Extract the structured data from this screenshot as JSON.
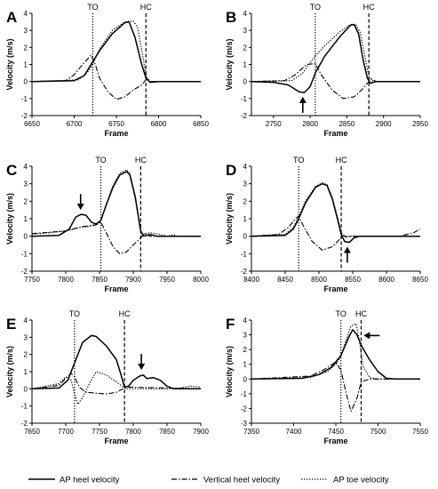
{
  "legend": {
    "solid": "AP heel velocity",
    "dashdot": "Vertical heel velocity",
    "dotted": "AP toe velocity"
  },
  "colors": {
    "ink": "#000000",
    "background": "#ffffff"
  },
  "chart_data": [
    {
      "type": "line",
      "panel": "A",
      "xlabel": "Frame",
      "ylabel": "Velocity (m/s)",
      "xlim": [
        6650,
        6850
      ],
      "ylim": [
        -2,
        4
      ],
      "xticks": [
        6650,
        6700,
        6750,
        6800,
        6850
      ],
      "yticks": [
        -2,
        -1,
        0,
        1,
        2,
        3,
        4
      ],
      "events": [
        {
          "label": "TO",
          "x": 6722,
          "style": "dotted"
        },
        {
          "label": "HC",
          "x": 6785,
          "style": "dashed"
        }
      ],
      "arrows": [],
      "series": [
        {
          "name": "AP heel velocity",
          "style": "solid",
          "x": [
            6650,
            6700,
            6712,
            6720,
            6730,
            6745,
            6760,
            6765,
            6772,
            6780,
            6785,
            6790,
            6800,
            6850
          ],
          "y": [
            0,
            0.05,
            0.35,
            1.0,
            1.8,
            2.8,
            3.45,
            3.5,
            2.6,
            1.0,
            0.2,
            -0.05,
            0,
            0
          ]
        },
        {
          "name": "Vertical heel velocity",
          "style": "dashdot",
          "x": [
            6650,
            6690,
            6700,
            6710,
            6720,
            6725,
            6730,
            6740,
            6750,
            6760,
            6770,
            6780,
            6785,
            6790,
            6800,
            6850
          ],
          "y": [
            0,
            0.05,
            0.4,
            1.0,
            1.55,
            1.0,
            0.2,
            -0.6,
            -1.05,
            -0.9,
            -0.5,
            -0.2,
            0.1,
            0,
            0,
            0
          ]
        },
        {
          "name": "AP toe velocity",
          "style": "dotted",
          "x": [
            6650,
            6705,
            6715,
            6722,
            6730,
            6745,
            6760,
            6770,
            6775,
            6782,
            6785,
            6790,
            6850
          ],
          "y": [
            0,
            0.1,
            0.5,
            1.0,
            1.9,
            3.0,
            3.5,
            3.55,
            3.2,
            1.3,
            0.3,
            0,
            0
          ]
        }
      ]
    },
    {
      "type": "line",
      "panel": "B",
      "xlabel": "Frame",
      "ylabel": "Velocity (m/s)",
      "xlim": [
        2720,
        2950
      ],
      "ylim": [
        -2,
        4
      ],
      "xticks": [
        2750,
        2800,
        2850,
        2900,
        2950
      ],
      "yticks": [
        -2,
        -1,
        0,
        1,
        2,
        3,
        4
      ],
      "events": [
        {
          "label": "TO",
          "x": 2807,
          "style": "dotted"
        },
        {
          "label": "HC",
          "x": 2880,
          "style": "dashed"
        }
      ],
      "arrows": [
        {
          "direction": "up",
          "x": 2790,
          "y": -0.9
        }
      ],
      "series": [
        {
          "name": "AP heel velocity",
          "style": "solid",
          "x": [
            2720,
            2750,
            2770,
            2785,
            2792,
            2800,
            2807,
            2820,
            2840,
            2855,
            2860,
            2866,
            2872,
            2878,
            2882,
            2890,
            2950
          ],
          "y": [
            0,
            -0.05,
            -0.2,
            -0.6,
            -0.65,
            -0.3,
            0.5,
            1.5,
            2.6,
            3.3,
            3.35,
            2.8,
            1.3,
            0.2,
            -0.1,
            0,
            0
          ]
        },
        {
          "name": "Vertical heel velocity",
          "style": "dashdot",
          "x": [
            2720,
            2765,
            2780,
            2795,
            2807,
            2815,
            2830,
            2845,
            2860,
            2870,
            2878,
            2884,
            2890,
            2950
          ],
          "y": [
            0,
            0.05,
            0.4,
            1.0,
            1.05,
            0.4,
            -0.5,
            -1.0,
            -0.9,
            -0.5,
            -0.1,
            0.15,
            0,
            0
          ]
        },
        {
          "name": "AP toe velocity",
          "style": "dotted",
          "x": [
            2720,
            2775,
            2790,
            2800,
            2807,
            2820,
            2840,
            2855,
            2862,
            2868,
            2875,
            2880,
            2886,
            2950
          ],
          "y": [
            0,
            0.05,
            0.5,
            1.1,
            1.5,
            2.1,
            2.9,
            3.35,
            3.35,
            2.9,
            1.4,
            0.3,
            0,
            0
          ]
        }
      ]
    },
    {
      "type": "line",
      "panel": "C",
      "xlabel": "Frame",
      "ylabel": "Velocity (m/s)",
      "xlim": [
        7750,
        8000
      ],
      "ylim": [
        -2,
        4
      ],
      "xticks": [
        7750,
        7800,
        7850,
        7900,
        7950,
        8000
      ],
      "yticks": [
        -2,
        -1,
        0,
        1,
        2,
        3,
        4
      ],
      "events": [
        {
          "label": "TO",
          "x": 7852,
          "style": "dotted"
        },
        {
          "label": "HC",
          "x": 7911,
          "style": "dashed"
        }
      ],
      "arrows": [
        {
          "direction": "down",
          "x": 7822,
          "y": 1.5
        }
      ],
      "series": [
        {
          "name": "AP heel velocity",
          "style": "solid",
          "x": [
            7750,
            7790,
            7805,
            7815,
            7823,
            7830,
            7838,
            7845,
            7852,
            7860,
            7870,
            7880,
            7890,
            7895,
            7903,
            7911,
            7915,
            7925,
            7935,
            8000
          ],
          "y": [
            0,
            0.05,
            0.4,
            1.1,
            1.25,
            1.2,
            0.8,
            0.7,
            0.9,
            1.8,
            2.8,
            3.5,
            3.7,
            3.5,
            2.2,
            0.3,
            0,
            0.1,
            0,
            0
          ]
        },
        {
          "name": "Vertical heel velocity",
          "style": "dashdot",
          "x": [
            7750,
            7800,
            7815,
            7825,
            7835,
            7845,
            7852,
            7860,
            7870,
            7880,
            7890,
            7900,
            7911,
            7916,
            7925,
            8000
          ],
          "y": [
            0.15,
            0.3,
            0.45,
            0.55,
            0.6,
            0.65,
            0.8,
            0.2,
            -0.6,
            -1.0,
            -0.9,
            -0.5,
            -0.1,
            0.15,
            0,
            0
          ]
        },
        {
          "name": "AP toe velocity",
          "style": "dotted",
          "x": [
            7750,
            7800,
            7820,
            7835,
            7845,
            7852,
            7860,
            7870,
            7880,
            7890,
            7895,
            7903,
            7910,
            7915,
            7925,
            7940,
            7950,
            7960,
            7965,
            8000
          ],
          "y": [
            0.1,
            0.3,
            0.5,
            0.55,
            0.7,
            0.9,
            1.8,
            2.9,
            3.6,
            3.8,
            3.6,
            2.3,
            0.4,
            0.1,
            0.2,
            0.1,
            0,
            0.1,
            0,
            0
          ]
        }
      ]
    },
    {
      "type": "line",
      "panel": "D",
      "xlabel": "Frame",
      "ylabel": "Velocity (m/s)",
      "xlim": [
        8400,
        8650
      ],
      "ylim": [
        -2,
        4
      ],
      "xticks": [
        8400,
        8450,
        8500,
        8550,
        8600,
        8650
      ],
      "yticks": [
        -2,
        -1,
        0,
        1,
        2,
        3,
        4
      ],
      "events": [
        {
          "label": "TO",
          "x": 8470,
          "style": "dotted"
        },
        {
          "label": "HC",
          "x": 8533,
          "style": "dashed"
        }
      ],
      "arrows": [
        {
          "direction": "up",
          "x": 8542,
          "y": -0.6
        }
      ],
      "series": [
        {
          "name": "AP heel velocity",
          "style": "solid",
          "x": [
            8400,
            8450,
            8462,
            8470,
            8480,
            8495,
            8505,
            8512,
            8520,
            8528,
            8533,
            8538,
            8545,
            8552,
            8560,
            8650
          ],
          "y": [
            0,
            0.05,
            0.4,
            1.0,
            1.9,
            2.8,
            3.0,
            2.9,
            2.1,
            0.9,
            0.1,
            -0.3,
            -0.35,
            -0.1,
            0,
            0
          ]
        },
        {
          "name": "Vertical heel velocity",
          "style": "dashdot",
          "x": [
            8400,
            8440,
            8455,
            8465,
            8470,
            8478,
            8490,
            8505,
            8520,
            8530,
            8536,
            8540,
            8550,
            8620,
            8640,
            8650
          ],
          "y": [
            0,
            0.1,
            0.5,
            1.0,
            1.15,
            0.5,
            -0.3,
            -0.8,
            -0.6,
            -0.2,
            0.05,
            -0.05,
            0,
            0,
            0.2,
            0.4
          ]
        },
        {
          "name": "AP toe velocity",
          "style": "dotted",
          "x": [
            8400,
            8450,
            8462,
            8470,
            8480,
            8495,
            8505,
            8512,
            8520,
            8528,
            8533,
            8538,
            8550,
            8650
          ],
          "y": [
            0,
            0.1,
            0.5,
            1.1,
            2.0,
            2.85,
            3.05,
            2.95,
            2.2,
            1.0,
            0.2,
            0,
            0,
            0
          ]
        }
      ]
    },
    {
      "type": "line",
      "panel": "E",
      "xlabel": "Frame",
      "ylabel": "Velocity (m/s)",
      "xlim": [
        7650,
        7900
      ],
      "ylim": [
        -2,
        4
      ],
      "xticks": [
        7650,
        7700,
        7750,
        7800,
        7850,
        7900
      ],
      "yticks": [
        -2,
        -1,
        0,
        1,
        2,
        3,
        4
      ],
      "events": [
        {
          "label": "TO",
          "x": 7713,
          "style": "dotted"
        },
        {
          "label": "HC",
          "x": 7787,
          "style": "dashed"
        }
      ],
      "arrows": [
        {
          "direction": "down",
          "x": 7812,
          "y": 1.1
        }
      ],
      "series": [
        {
          "name": "AP heel velocity",
          "style": "solid",
          "x": [
            7650,
            7690,
            7703,
            7713,
            7725,
            7738,
            7745,
            7760,
            7775,
            7782,
            7787,
            7793,
            7800,
            7810,
            7815,
            7820,
            7830,
            7840,
            7850,
            7860,
            7900
          ],
          "y": [
            0,
            0.05,
            0.5,
            1.5,
            2.7,
            3.1,
            3.05,
            2.5,
            1.7,
            0.8,
            0.1,
            0.15,
            0.5,
            0.75,
            0.8,
            0.6,
            0.65,
            0.5,
            0.15,
            0,
            0
          ]
        },
        {
          "name": "Vertical heel velocity",
          "style": "dashdot",
          "x": [
            7650,
            7690,
            7700,
            7708,
            7713,
            7720,
            7730,
            7745,
            7760,
            7775,
            7787,
            7795,
            7850,
            7900
          ],
          "y": [
            0,
            0.2,
            0.6,
            0.9,
            0.7,
            0.1,
            -0.2,
            -0.25,
            -0.3,
            -0.2,
            0.05,
            0.1,
            0.05,
            0
          ]
        },
        {
          "name": "AP toe velocity",
          "style": "dotted",
          "x": [
            7650,
            7690,
            7700,
            7708,
            7713,
            7718,
            7725,
            7735,
            7745,
            7760,
            7775,
            7785,
            7790,
            7800,
            7850,
            7870,
            7885,
            7900
          ],
          "y": [
            0,
            0.3,
            0.7,
            0.5,
            -0.3,
            -0.9,
            -0.5,
            0.3,
            1.0,
            0.8,
            0.4,
            0.1,
            0,
            0,
            0,
            0.05,
            0.15,
            0.1
          ]
        }
      ]
    },
    {
      "type": "line",
      "panel": "F",
      "xlabel": "Frame",
      "ylabel": "Velocity (m/s)",
      "xlim": [
        7350,
        7550
      ],
      "ylim": [
        -3,
        4
      ],
      "xticks": [
        7350,
        7400,
        7450,
        7500,
        7550
      ],
      "yticks": [
        -3,
        -2,
        -1,
        0,
        1,
        2,
        3,
        4
      ],
      "events": [
        {
          "label": "TO",
          "x": 7456,
          "style": "dotted"
        },
        {
          "label": "HC",
          "x": 7480,
          "style": "dashed"
        }
      ],
      "arrows": [
        {
          "direction": "left",
          "x": 7483,
          "y": 2.95
        }
      ],
      "series": [
        {
          "name": "AP heel velocity",
          "style": "solid",
          "x": [
            7350,
            7410,
            7430,
            7445,
            7456,
            7465,
            7470,
            7475,
            7480,
            7490,
            7500,
            7510,
            7520,
            7550
          ],
          "y": [
            0,
            0.05,
            0.3,
            0.8,
            1.6,
            2.8,
            3.35,
            3.0,
            2.3,
            1.3,
            0.5,
            0.05,
            0,
            0
          ]
        },
        {
          "name": "Vertical heel velocity",
          "style": "dashdot",
          "x": [
            7350,
            7420,
            7435,
            7450,
            7456,
            7462,
            7468,
            7475,
            7480,
            7490,
            7500,
            7550
          ],
          "y": [
            0,
            0.2,
            0.6,
            1.15,
            0.6,
            -0.9,
            -2.2,
            -1.3,
            -0.2,
            0,
            0,
            0
          ]
        },
        {
          "name": "AP toe velocity",
          "style": "dotted",
          "x": [
            7350,
            7420,
            7440,
            7450,
            7456,
            7462,
            7468,
            7474,
            7478,
            7482,
            7490,
            7500,
            7550
          ],
          "y": [
            0,
            0.1,
            0.5,
            1.0,
            1.5,
            2.6,
            3.6,
            3.75,
            2.6,
            0.9,
            0.1,
            0,
            0
          ]
        }
      ]
    }
  ]
}
